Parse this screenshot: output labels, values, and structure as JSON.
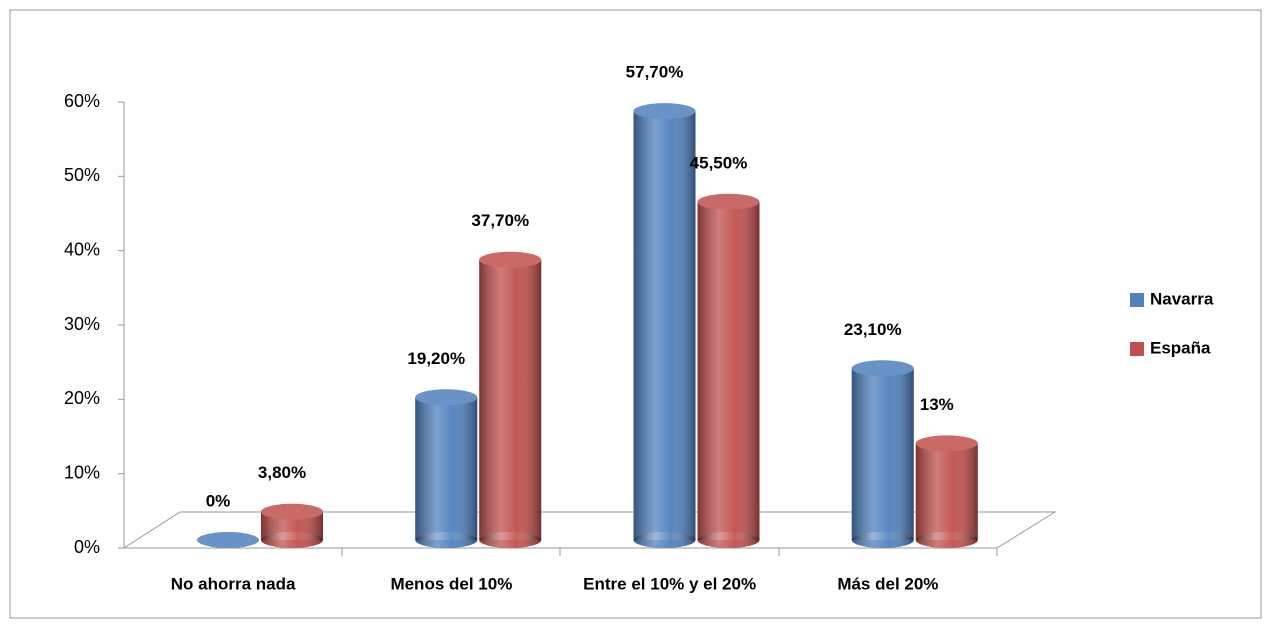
{
  "chart_data": {
    "type": "bar",
    "categories": [
      "No ahorra nada",
      "Menos del 10%",
      "Entre el 10% y el 20%",
      "Más del 20%"
    ],
    "series": [
      {
        "name": "Navarra",
        "color": "#4f81bd",
        "values": [
          0,
          19.2,
          57.7,
          23.1
        ],
        "value_labels": [
          "0%",
          "19,20%",
          "57,70%",
          "23,10%"
        ]
      },
      {
        "name": "España",
        "color": "#c0504d",
        "values": [
          3.8,
          37.7,
          45.5,
          13
        ],
        "value_labels": [
          "3,80%",
          "37,70%",
          "45,50%",
          "13%"
        ]
      }
    ],
    "ylim": [
      0,
      60
    ],
    "yticks": [
      {
        "value": 0,
        "label": "0%"
      },
      {
        "value": 10,
        "label": "10%"
      },
      {
        "value": 20,
        "label": "20%"
      },
      {
        "value": 30,
        "label": "30%"
      },
      {
        "value": 40,
        "label": "40%"
      },
      {
        "value": 50,
        "label": "50%"
      },
      {
        "value": 60,
        "label": "60%"
      }
    ],
    "legend": "right"
  }
}
